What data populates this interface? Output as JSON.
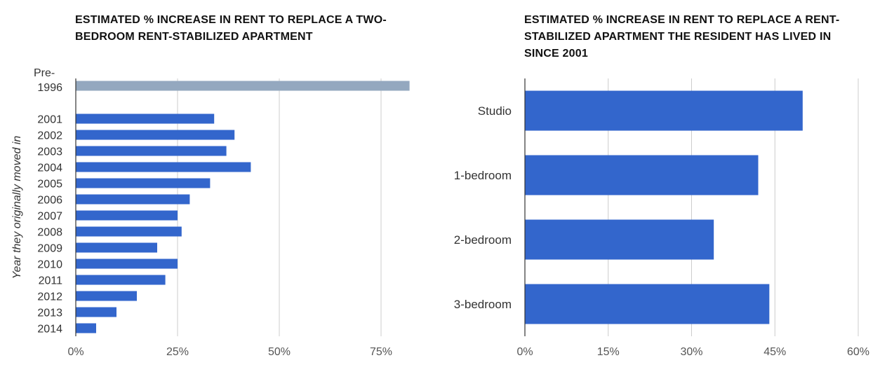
{
  "chart_data": [
    {
      "type": "bar",
      "orientation": "horizontal",
      "title": "ESTIMATED % INCREASE IN RENT TO REPLACE A TWO-BEDROOM RENT-STABILIZED APARTMENT",
      "ylabel": "Year they originally moved in",
      "xlabel": "",
      "xlim": [
        0,
        82
      ],
      "x_ticks": [
        "0%",
        "25%",
        "50%",
        "75%"
      ],
      "tick_values": [
        0,
        25,
        50,
        75
      ],
      "grid": true,
      "categories": [
        "Pre-1996",
        "2001",
        "2002",
        "2003",
        "2004",
        "2005",
        "2006",
        "2007",
        "2008",
        "2009",
        "2010",
        "2011",
        "2012",
        "2013",
        "2014"
      ],
      "category_label_lines": [
        [
          "Pre-",
          "1996"
        ],
        [
          "2001"
        ],
        [
          "2002"
        ],
        [
          "2003"
        ],
        [
          "2004"
        ],
        [
          "2005"
        ],
        [
          "2006"
        ],
        [
          "2007"
        ],
        [
          "2008"
        ],
        [
          "2009"
        ],
        [
          "2010"
        ],
        [
          "2011"
        ],
        [
          "2012"
        ],
        [
          "2013"
        ],
        [
          "2014"
        ]
      ],
      "values": [
        82,
        34,
        39,
        37,
        43,
        33,
        28,
        25,
        26,
        20,
        25,
        22,
        15,
        10,
        5
      ],
      "colors": [
        "#94a8bf",
        "#3366cc",
        "#3366cc",
        "#3366cc",
        "#3366cc",
        "#3366cc",
        "#3366cc",
        "#3366cc",
        "#3366cc",
        "#3366cc",
        "#3366cc",
        "#3366cc",
        "#3366cc",
        "#3366cc",
        "#3366cc"
      ]
    },
    {
      "type": "bar",
      "orientation": "horizontal",
      "title": "ESTIMATED % INCREASE IN RENT TO REPLACE A RENT-STABILIZED APARTMENT THE RESIDENT HAS LIVED IN SINCE 2001",
      "xlabel": "",
      "ylabel": "",
      "xlim": [
        0,
        60
      ],
      "x_ticks": [
        "0%",
        "15%",
        "30%",
        "45%",
        "60%"
      ],
      "tick_values": [
        0,
        15,
        30,
        45,
        60
      ],
      "grid": true,
      "categories": [
        "Studio",
        "1-bedroom",
        "2-bedroom",
        "3-bedroom"
      ],
      "values": [
        50,
        42,
        34,
        44
      ],
      "colors": [
        "#3366cc",
        "#3366cc",
        "#3366cc",
        "#3366cc"
      ]
    }
  ]
}
